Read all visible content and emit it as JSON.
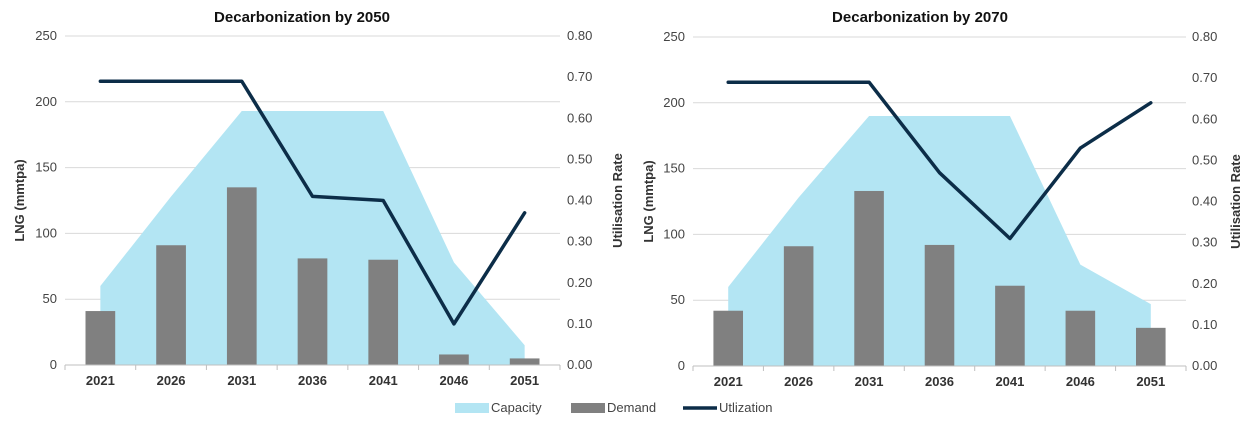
{
  "chart_data": [
    {
      "type": "bar",
      "title": "Decarbonization by 2050",
      "categories": [
        "2021",
        "2026",
        "2031",
        "2036",
        "2041",
        "2046",
        "2051"
      ],
      "ylabel": "LNG (mmtpa)",
      "y2label": "Utilisation Rate",
      "ylim": [
        0,
        250
      ],
      "y2lim": [
        0,
        0.8
      ],
      "yticks": [
        "0",
        "50",
        "100",
        "150",
        "200",
        "250"
      ],
      "y2ticks": [
        "0.00",
        "0.10",
        "0.20",
        "0.30",
        "0.40",
        "0.50",
        "0.60",
        "0.70",
        "0.80"
      ],
      "grid": true,
      "series": [
        {
          "name": "Capacity",
          "type": "area",
          "axis": "left",
          "color": "#b3e5f3",
          "values": [
            60,
            128,
            193,
            193,
            193,
            78,
            15
          ]
        },
        {
          "name": "Demand",
          "type": "bar",
          "axis": "left",
          "color": "#808080",
          "values": [
            41,
            91,
            135,
            81,
            80,
            8,
            5
          ]
        },
        {
          "name": "Utlization",
          "type": "line",
          "axis": "right",
          "color": "#0c2d48",
          "values": [
            0.69,
            0.69,
            0.69,
            0.41,
            0.4,
            0.1,
            0.37
          ]
        }
      ]
    },
    {
      "type": "bar",
      "title": "Decarbonization by 2070",
      "categories": [
        "2021",
        "2026",
        "2031",
        "2036",
        "2041",
        "2046",
        "2051"
      ],
      "ylabel": "LNG (mmtpa)",
      "y2label": "Utilisation Rate",
      "ylim": [
        0,
        250
      ],
      "y2lim": [
        0,
        0.8
      ],
      "yticks": [
        "0",
        "50",
        "100",
        "150",
        "200",
        "250"
      ],
      "y2ticks": [
        "0.00",
        "0.10",
        "0.20",
        "0.30",
        "0.40",
        "0.50",
        "0.60",
        "0.70",
        "0.80"
      ],
      "grid": true,
      "series": [
        {
          "name": "Capacity",
          "type": "area",
          "axis": "left",
          "color": "#b3e5f3",
          "values": [
            60,
            128,
            190,
            190,
            190,
            77,
            47
          ]
        },
        {
          "name": "Demand",
          "type": "bar",
          "axis": "left",
          "color": "#808080",
          "values": [
            42,
            91,
            133,
            92,
            61,
            42,
            29
          ]
        },
        {
          "name": "Utlization",
          "type": "line",
          "axis": "right",
          "color": "#0c2d48",
          "values": [
            0.69,
            0.69,
            0.69,
            0.47,
            0.31,
            0.53,
            0.64
          ]
        }
      ]
    }
  ],
  "legend": {
    "position": "bottom-center",
    "items": [
      {
        "label": "Capacity",
        "color": "#b3e5f3",
        "shape": "swatch"
      },
      {
        "label": "Demand",
        "color": "#808080",
        "shape": "swatch"
      },
      {
        "label": "Utlization",
        "color": "#0c2d48",
        "shape": "line"
      }
    ]
  }
}
